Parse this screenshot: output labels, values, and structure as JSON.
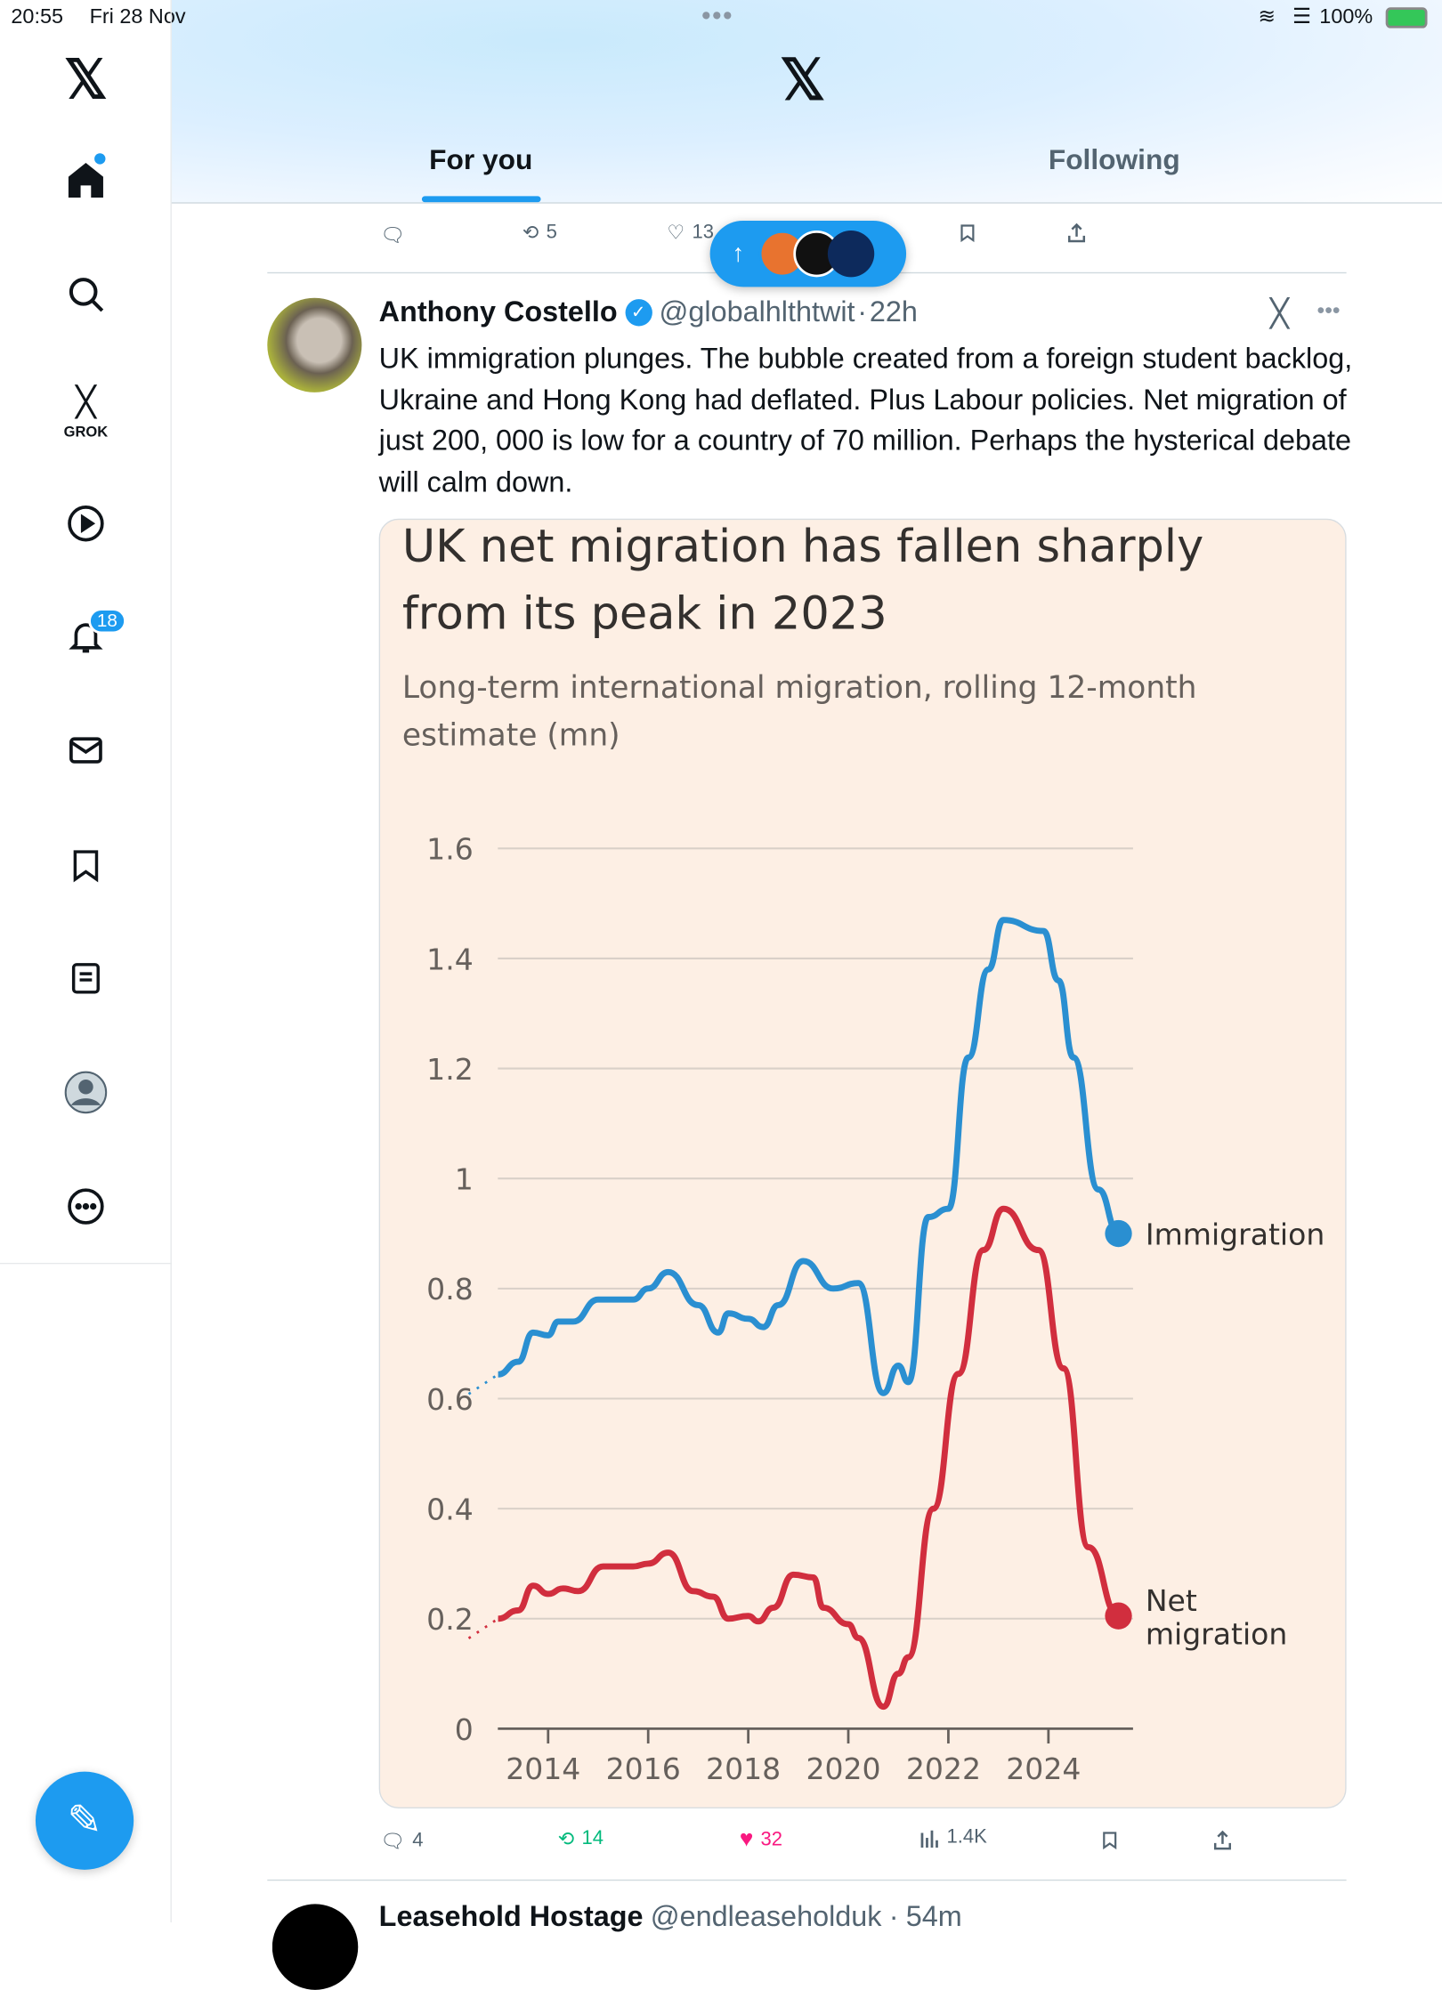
{
  "status_bar": {
    "time": "20:55",
    "date": "Fri 28 Nov",
    "battery": "100%"
  },
  "header": {
    "tabs": [
      {
        "label": "For you",
        "active": true
      },
      {
        "label": "Following",
        "active": false
      }
    ]
  },
  "sidebar": {
    "notification_count": "18",
    "grok_label": "GROK",
    "items": [
      "home",
      "search",
      "grok",
      "video",
      "notifications",
      "messages",
      "bookmarks",
      "lists",
      "profile",
      "more"
    ]
  },
  "prev_tweet_actions": {
    "retweets": "5",
    "likes": "13"
  },
  "tweet": {
    "name": "Anthony Costello",
    "handle": "@globalhlthtwit",
    "time": "22h",
    "sep": "·",
    "text": "UK immigration plunges. The bubble created from a  foreign student backlog, Ukraine and Hong Kong had deflated. Plus Labour policies. Net migration of just 200, 000 is low for a country of 70 million. Perhaps the hysterical debate will calm down.",
    "replies": "4",
    "retweets": "14",
    "likes": "32",
    "views": "1.4K"
  },
  "next_tweet": {
    "name": "Leasehold Hostage",
    "handle": "@endleaseholduk",
    "time": "54m"
  },
  "colors": {
    "accent": "#1d9bf0",
    "retweet": "#00ba7c",
    "like": "#f91880",
    "immigration": "#2a8fd1",
    "net": "#d12e3e",
    "card_bg": "#fdefe4"
  },
  "chart_data": {
    "type": "line",
    "title": "UK net migration has fallen sharply from its peak in 2023",
    "subtitle": "Long-term international migration, rolling 12-month estimate (mn)",
    "ylim": [
      0,
      1.6
    ],
    "yticks": [
      "0",
      "0.2",
      "0.4",
      "0.6",
      "0.8",
      "1",
      "1.2",
      "1.4",
      "1.6"
    ],
    "ytick_values": [
      0,
      0.2,
      0.4,
      0.6,
      0.8,
      1,
      1.2,
      1.4,
      1.6
    ],
    "xticks": [
      "2014",
      "2016",
      "2018",
      "2020",
      "2022",
      "2024"
    ],
    "xtick_values": [
      2014,
      2016,
      2018,
      2020,
      2022,
      2024
    ],
    "xlim": [
      2013,
      2025.5
    ],
    "grid": true,
    "series": [
      {
        "name": "Immigration",
        "label": "Immigration",
        "color": "#2a8fd1",
        "x": [
          2013.0,
          2013.4,
          2013.7,
          2014.0,
          2014.2,
          2014.5,
          2015.0,
          2015.7,
          2016.0,
          2016.4,
          2017.0,
          2017.4,
          2017.6,
          2018.0,
          2018.3,
          2018.6,
          2019.1,
          2019.7,
          2020.2,
          2020.7,
          2021.0,
          2021.2,
          2021.6,
          2022.0,
          2022.4,
          2022.8,
          2023.1,
          2023.9,
          2024.2,
          2024.5,
          2025.0,
          2025.4
        ],
        "y": [
          0.644,
          0.667,
          0.72,
          0.715,
          0.74,
          0.74,
          0.78,
          0.78,
          0.8,
          0.83,
          0.77,
          0.72,
          0.755,
          0.745,
          0.73,
          0.77,
          0.85,
          0.8,
          0.81,
          0.61,
          0.66,
          0.63,
          0.93,
          0.945,
          1.22,
          1.38,
          1.47,
          1.45,
          1.36,
          1.22,
          0.98,
          0.9
        ]
      },
      {
        "name": "Net migration",
        "label": "Net migration",
        "color": "#d12e3e",
        "x": [
          2013.0,
          2013.4,
          2013.7,
          2014.0,
          2014.3,
          2014.6,
          2015.1,
          2015.7,
          2016.0,
          2016.4,
          2016.9,
          2017.3,
          2017.6,
          2018.0,
          2018.2,
          2018.5,
          2018.9,
          2019.3,
          2019.5,
          2020.0,
          2020.2,
          2020.7,
          2021.0,
          2021.2,
          2021.7,
          2022.2,
          2022.7,
          2023.1,
          2023.8,
          2024.3,
          2024.8,
          2025.4
        ],
        "y": [
          0.2,
          0.215,
          0.26,
          0.245,
          0.255,
          0.25,
          0.295,
          0.295,
          0.3,
          0.32,
          0.25,
          0.24,
          0.2,
          0.205,
          0.195,
          0.22,
          0.28,
          0.275,
          0.22,
          0.19,
          0.165,
          0.04,
          0.1,
          0.13,
          0.4,
          0.645,
          0.87,
          0.945,
          0.87,
          0.655,
          0.33,
          0.205
        ]
      }
    ]
  }
}
